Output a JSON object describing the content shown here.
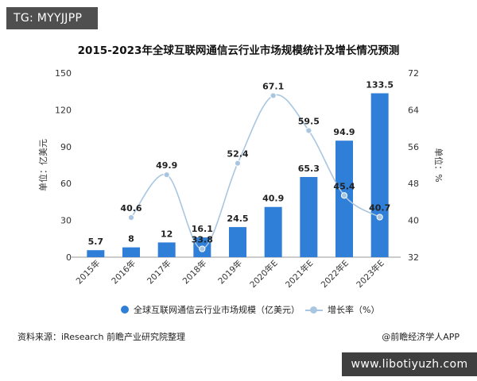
{
  "tag": "TG: MYYJJPP",
  "site_watermark": "www.libotiyuzh.com",
  "chart_data": {
    "type": "bar",
    "title": "2015-2023年全球互联网通信云行业市场规模统计及增长情况预测",
    "categories": [
      "2015年",
      "2016年",
      "2017年",
      "2018年",
      "2019年",
      "2020年E",
      "2021年E",
      "2022年E",
      "2023年E"
    ],
    "series": [
      {
        "name": "全球互联网通信云行业市场规模（亿美元）",
        "type": "bar",
        "axis": "left",
        "color": "#2f7fd8",
        "values": [
          5.7,
          8,
          12,
          16.1,
          24.5,
          40.9,
          65.3,
          94.9,
          133.5
        ],
        "labels": [
          "5.7",
          "8",
          "12",
          "16.1",
          "24.5",
          "40.9",
          "65.3",
          "94.9",
          "133.5"
        ]
      },
      {
        "name": "增长率（%）",
        "type": "line",
        "axis": "right",
        "color": "#a9c6e0",
        "values": [
          null,
          40.6,
          49.9,
          33.8,
          52.4,
          67.1,
          59.5,
          45.4,
          40.7
        ],
        "labels": [
          null,
          "40.6",
          "49.9",
          "33.8",
          "52.4",
          "67.1",
          "59.5",
          "45.4",
          "40.7"
        ]
      }
    ],
    "ylabel": "单位：亿美元",
    "ylabel_right": "单位：%",
    "ylim": [
      0,
      150
    ],
    "ylim_right": [
      32,
      72
    ],
    "yticks": [
      "0",
      "30",
      "60",
      "90",
      "120",
      "150"
    ],
    "yticks_right": [
      "32",
      "40",
      "48",
      "56",
      "64",
      "72"
    ],
    "legend_position": "bottom",
    "grid": false
  },
  "source_text": "资料来源：iResearch 前瞻产业研究院整理",
  "brand_text": "@前瞻经济学人APP"
}
